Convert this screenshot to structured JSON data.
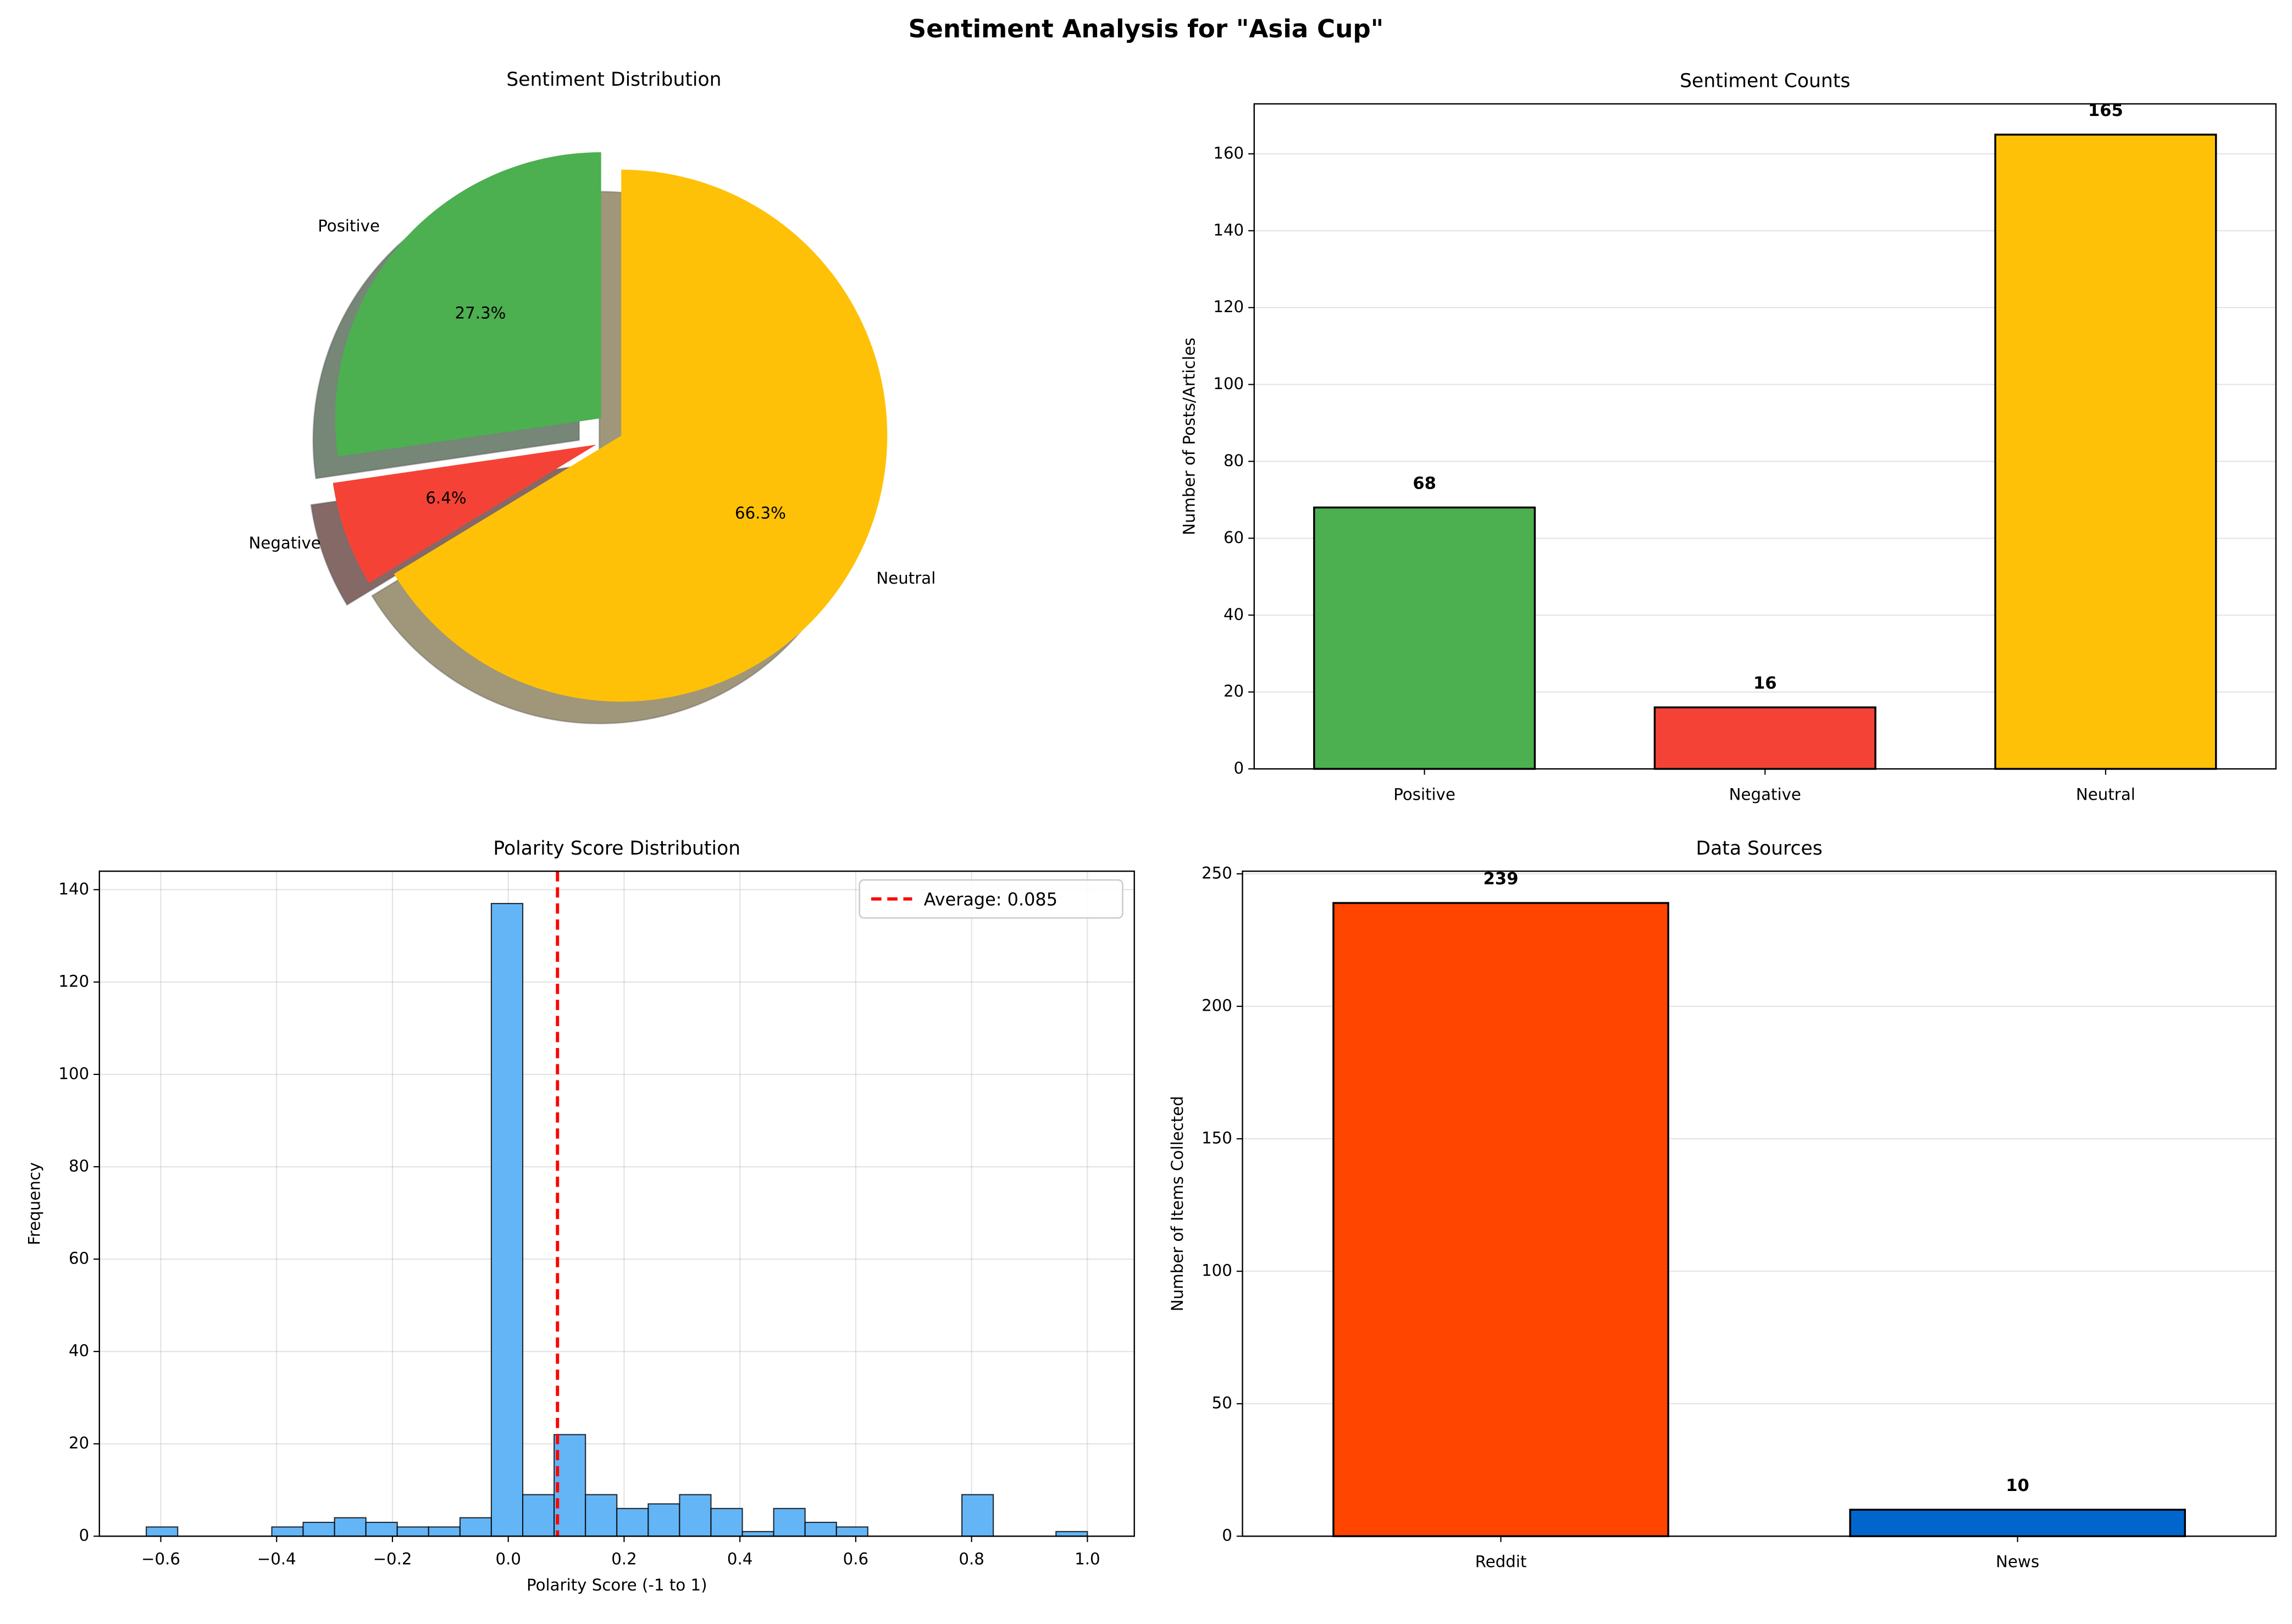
{
  "title": "Sentiment Analysis for \"Asia Cup\"",
  "chart_data": [
    {
      "type": "pie",
      "title": "Sentiment Distribution",
      "categories": [
        "Positive",
        "Negative",
        "Neutral"
      ],
      "values": [
        27.3,
        6.4,
        66.3
      ],
      "value_labels": [
        "27.3%",
        "6.4%",
        "66.3%"
      ],
      "colors": [
        "#4caf50",
        "#f44336",
        "#ffc107"
      ],
      "explode": [
        0.1,
        0.1,
        0
      ],
      "startangle": 90,
      "shadow": true
    },
    {
      "type": "bar",
      "title": "Sentiment Counts",
      "ylabel": "Number of Posts/Articles",
      "categories": [
        "Positive",
        "Negative",
        "Neutral"
      ],
      "values": [
        68,
        16,
        165
      ],
      "colors": [
        "#4caf50",
        "#f44336",
        "#ffc107"
      ],
      "ylim": [
        0,
        173
      ],
      "yticks": [
        0,
        20,
        40,
        60,
        80,
        100,
        120,
        140,
        160
      ],
      "grid": true
    },
    {
      "type": "histogram",
      "title": "Polarity Score Distribution",
      "xlabel": "Polarity Score (-1 to 1)",
      "ylabel": "Frequency",
      "color": "#64b5f6",
      "bins": [
        -0.625,
        -0.5708,
        -0.5167,
        -0.4625,
        -0.4083,
        -0.3542,
        -0.3,
        -0.2458,
        -0.1917,
        -0.1375,
        -0.0833,
        -0.0292,
        0.025,
        0.0792,
        0.1333,
        0.1875,
        0.2417,
        0.2958,
        0.35,
        0.4042,
        0.4583,
        0.5125,
        0.5667,
        0.6208,
        0.675,
        0.7292,
        0.7833,
        0.8375,
        0.8917,
        0.9458,
        1.0
      ],
      "values": [
        2,
        0,
        0,
        0,
        2,
        3,
        4,
        3,
        2,
        2,
        4,
        137,
        9,
        22,
        9,
        6,
        7,
        9,
        6,
        1,
        6,
        3,
        2,
        0,
        0,
        0,
        9,
        0,
        0,
        1
      ],
      "mean_line": {
        "value": 0.085,
        "label": "Average: 0.085",
        "color": "#ff0000"
      },
      "xlim": [
        -0.706,
        1.081
      ],
      "xticks": [
        {
          "value": -0.6,
          "label": "−0.6"
        },
        {
          "value": -0.4,
          "label": "−0.4"
        },
        {
          "value": -0.2,
          "label": "−0.2"
        },
        {
          "value": 0,
          "label": "0.0"
        },
        0.2,
        0.4,
        0.6,
        0.8,
        {
          "value": 1,
          "label": "1.0"
        }
      ],
      "ylim": [
        0,
        144
      ],
      "yticks": [
        0,
        20,
        40,
        60,
        80,
        100,
        120,
        140
      ],
      "grid": true,
      "legend": "upper right"
    },
    {
      "type": "bar",
      "title": "Data Sources",
      "ylabel": "Number of Items Collected",
      "categories": [
        "Reddit",
        "News"
      ],
      "values": [
        239,
        10
      ],
      "colors": [
        "#ff4500",
        "#0066cc"
      ],
      "ylim": [
        0,
        251
      ],
      "yticks": [
        0,
        50,
        100,
        150,
        200,
        250
      ],
      "grid": true
    }
  ]
}
